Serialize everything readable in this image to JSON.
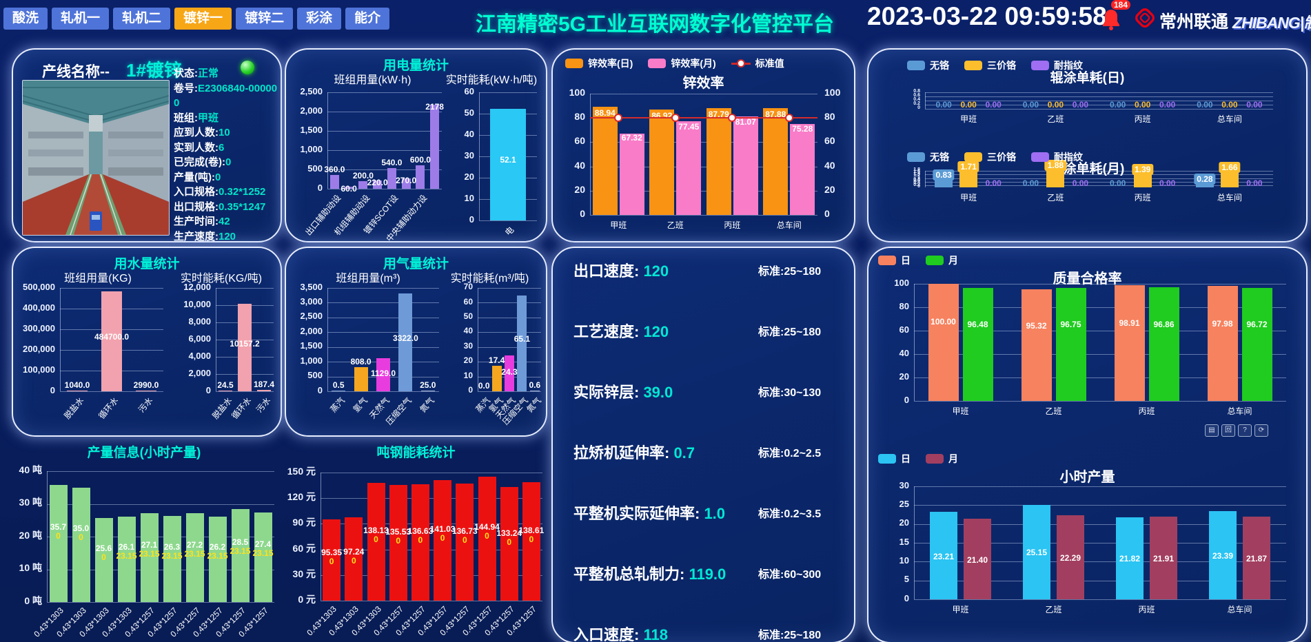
{
  "header": {
    "tabs": [
      {
        "label": "酸洗",
        "active": false
      },
      {
        "label": "轧机一",
        "active": false
      },
      {
        "label": "轧机二",
        "active": false
      },
      {
        "label": "镀锌一",
        "active": true
      },
      {
        "label": "镀锌二",
        "active": false
      },
      {
        "label": "彩涂",
        "active": false
      },
      {
        "label": "能介",
        "active": false
      }
    ],
    "title": "江南精密5G工业互联网数字化管控平台",
    "datetime": "2023-03-22 09:59:58",
    "alarm_count": "184",
    "carrier": "常州联通",
    "brand": "ZHIBANG|制邦"
  },
  "line_panel": {
    "title_prefix": "产线名称--",
    "line_name": "1#镀锌",
    "fields": [
      {
        "label": "状态:",
        "value": "正常"
      },
      {
        "label": "卷号:",
        "value": "E2306840-000000"
      },
      {
        "label": "班组:",
        "value": "甲班"
      },
      {
        "label": "应到人数:",
        "value": "10"
      },
      {
        "label": "实到人数:",
        "value": "6"
      },
      {
        "label": "已完成(卷):",
        "value": "0"
      },
      {
        "label": "产量(吨):",
        "value": "0"
      },
      {
        "label": "入口规格:",
        "value": "0.32*1252"
      },
      {
        "label": "出口规格:",
        "value": "0.35*1247"
      },
      {
        "label": "生产时间:",
        "value": "42"
      },
      {
        "label": "生产速度:",
        "value": "120"
      }
    ]
  },
  "panels": {
    "electric": "用电量统计",
    "water": "用水量统计",
    "gas": "用气量统计"
  },
  "params": {
    "rows": [
      {
        "label": "出口速度:",
        "value": "120",
        "std": "标准:25~180"
      },
      {
        "label": "工艺速度:",
        "value": "120",
        "std": "标准:25~180"
      },
      {
        "label": "实际锌层:",
        "value": "39.0",
        "std": "标准:30~130"
      },
      {
        "label": "拉矫机延伸率:",
        "value": "0.7",
        "std": "标准:0.2~2.5"
      },
      {
        "label": "平整机实际延伸率:",
        "value": "1.0",
        "std": "标准:0.2~3.5"
      },
      {
        "label": "平整机总轧制力:",
        "value": "119.0",
        "std": "标准:60~300"
      },
      {
        "label": "入口速度:",
        "value": "118",
        "std": "标准:25~180"
      }
    ]
  },
  "toolbox": {
    "icons": [
      "▤",
      "回",
      "?",
      "⟳"
    ]
  },
  "chart_data": {
    "elec_group": {
      "type": "bar",
      "title": "班组用量(kW·h)",
      "yticks": [
        "2,500",
        "2,000",
        "1,500",
        "1,000",
        "500",
        "0"
      ],
      "ymax": 2500,
      "categories": [
        "出口辅助动设",
        "",
        "机组辅助动设",
        "",
        "镀锌SCOT设",
        "",
        "中央辅助动力设",
        ""
      ],
      "values": [
        360,
        60,
        200,
        220,
        540,
        270,
        600,
        2178
      ],
      "labels": [
        "360.0",
        "60.0",
        "200.0",
        "220.0",
        "540.0",
        "270.0",
        "600.0",
        "2178"
      ],
      "color": "#9d7ce8"
    },
    "elec_single": {
      "type": "bar",
      "title": "实时能耗(kW·h/吨)",
      "yticks": [
        "60",
        "50",
        "40",
        "30",
        "20",
        "10",
        "0"
      ],
      "ymax": 60,
      "categories": [
        "电"
      ],
      "values": [
        52.1
      ],
      "labels": [
        "52.1"
      ],
      "color": "#2ac8f5"
    },
    "water_group": {
      "type": "bar",
      "title": "班组用量(KG)",
      "yticks": [
        "500,000",
        "400,000",
        "300,000",
        "200,000",
        "100,000",
        "0"
      ],
      "ymax": 500000,
      "categories": [
        "脱盐水",
        "循环水",
        "污水"
      ],
      "values": [
        1040,
        484700,
        2990
      ],
      "labels": [
        "1040.0",
        "484700.0",
        "2990.0"
      ],
      "color": "#f2a2ae"
    },
    "water_single": {
      "type": "bar",
      "title": "实时能耗(KG/吨)",
      "yticks": [
        "12,000",
        "10,000",
        "8,000",
        "6,000",
        "4,000",
        "2,000",
        "0"
      ],
      "ymax": 12000,
      "categories": [
        "脱盐水",
        "循环水",
        "污水"
      ],
      "values": [
        24.5,
        10157.2,
        187.4
      ],
      "labels": [
        "24.5",
        "10157.2",
        "187.4"
      ],
      "color": "#f2a2ae"
    },
    "gas_group": {
      "type": "bar",
      "title": "班组用量(m³)",
      "yticks": [
        "3,500",
        "3,000",
        "2,500",
        "2,000",
        "1,500",
        "1,000",
        "500",
        "0"
      ],
      "ymax": 3500,
      "categories": [
        "蒸汽",
        "氢气",
        "天然气",
        "压缩空气",
        "氮气"
      ],
      "values": [
        0.5,
        808,
        1129,
        3322,
        25
      ],
      "labels": [
        "0.5",
        "808.0",
        "1129.0",
        "3322.0",
        "25.0"
      ],
      "colors": [
        "#7d9fd3",
        "#f6a71f",
        "#e93cdf",
        "#6e9bd8",
        "#9fb3d8"
      ]
    },
    "gas_single": {
      "type": "bar",
      "title": "实时能耗(m³/吨)",
      "yticks": [
        "70",
        "60",
        "50",
        "40",
        "30",
        "20",
        "10",
        "0"
      ],
      "ymax": 70,
      "categories": [
        "蒸汽",
        "氢气",
        "天然气",
        "压缩空气",
        "氮气"
      ],
      "values": [
        0,
        17.4,
        24.3,
        65.1,
        0.6
      ],
      "labels": [
        "0.0",
        "17.4",
        "24.3",
        "65.1",
        "0.6"
      ],
      "colors": [
        "#7d9fd3",
        "#f6a71f",
        "#e93cdf",
        "#6e9bd8",
        "#9fb3d8"
      ]
    },
    "zinc_eff": {
      "type": "bar",
      "title": "锌效率",
      "legend": [
        {
          "label": "锌效率(日)",
          "color": "#f89313"
        },
        {
          "label": "锌效率(月)",
          "color": "#f97cc8"
        },
        {
          "label": "标准值",
          "color": "#cf2727",
          "type": "line"
        }
      ],
      "yticks": [
        "100",
        "80",
        "60",
        "40",
        "20",
        "0"
      ],
      "ymax": 100,
      "categories": [
        "甲班",
        "乙班",
        "丙班",
        "总车间"
      ],
      "series": [
        {
          "name": "锌效率(日)",
          "color": "#f89313",
          "values": [
            88.94,
            86.92,
            87.79,
            87.88
          ],
          "labels": [
            "88.94",
            "86.92",
            "87.79",
            "87.88"
          ]
        },
        {
          "name": "锌效率(月)",
          "color": "#f97cc8",
          "values": [
            67.32,
            77.45,
            81.07,
            75.28
          ],
          "labels": [
            "67.32",
            "77.45",
            "81.07",
            "75.28"
          ]
        }
      ],
      "standard": 80
    },
    "coat_day": {
      "type": "bar",
      "title": "辊涂单耗(日)",
      "legend": [
        {
          "label": "无铬",
          "color": "#5b9bd5"
        },
        {
          "label": "三价铬",
          "color": "#fcbe2d"
        },
        {
          "label": "耐指纹",
          "color": "#9f6ef2"
        }
      ],
      "yticks": [
        "0.8",
        "0.6",
        "0.4",
        "0.2",
        "0"
      ],
      "ymax": 0.9,
      "categories": [
        "甲班",
        "乙班",
        "丙班",
        "总车间"
      ],
      "series": [
        {
          "name": "无铬",
          "color": "#5b9bd5",
          "values": [
            0,
            0,
            0,
            0
          ],
          "labels": [
            "0.00",
            "0.00",
            "0.00",
            "0.00"
          ]
        },
        {
          "name": "三价铬",
          "color": "#fcbe2d",
          "values": [
            0,
            0,
            0,
            0
          ],
          "labels": [
            "0.00",
            "0.00",
            "0.00",
            "0.00"
          ]
        },
        {
          "name": "耐指纹",
          "color": "#9f6ef2",
          "values": [
            0,
            0,
            0,
            0
          ],
          "labels": [
            "0.00",
            "0.00",
            "0.00",
            "0.00"
          ]
        }
      ]
    },
    "coat_month": {
      "type": "bar",
      "title": "辊涂单耗(月)",
      "legend": [
        {
          "label": "无铬",
          "color": "#5b9bd5"
        },
        {
          "label": "三价铬",
          "color": "#fcbe2d"
        },
        {
          "label": "耐指纹",
          "color": "#9f6ef2"
        }
      ],
      "yticks": [
        "1.8",
        "1.6",
        "1.4",
        "1.2",
        "1",
        "0.8",
        "0.6",
        "0.4",
        "0.2",
        "0"
      ],
      "ymax": 1.9,
      "categories": [
        "甲班",
        "乙班",
        "丙班",
        "总车间"
      ],
      "series": [
        {
          "name": "无铬",
          "color": "#5b9bd5",
          "values": [
            0.83,
            0,
            0,
            0.28
          ],
          "labels": [
            "0.83",
            "0.00",
            "0.00",
            "0.28"
          ]
        },
        {
          "name": "三价铬",
          "color": "#fcbe2d",
          "values": [
            1.71,
            1.88,
            1.39,
            1.66
          ],
          "labels": [
            "1.71",
            "1.88",
            "1.39",
            "1.66"
          ]
        },
        {
          "name": "耐指纹",
          "color": "#9f6ef2",
          "values": [
            0,
            0,
            0,
            0
          ],
          "labels": [
            "0.00",
            "0.00",
            "0.00",
            "0.00"
          ]
        }
      ]
    },
    "quality": {
      "type": "bar",
      "title": "质量合格率",
      "legend": [
        {
          "label": "日",
          "color": "#f7825f"
        },
        {
          "label": "月",
          "color": "#1fcc1f"
        }
      ],
      "yticks": [
        "100",
        "80",
        "60",
        "40",
        "20",
        "0"
      ],
      "ymax": 100,
      "categories": [
        "甲班",
        "乙班",
        "丙班",
        "总车间"
      ],
      "series": [
        {
          "name": "日",
          "color": "#f7825f",
          "values": [
            100,
            95.32,
            98.91,
            97.98
          ],
          "labels": [
            "100.00",
            "95.32",
            "98.91",
            "97.98"
          ]
        },
        {
          "name": "月",
          "color": "#1fcc1f",
          "values": [
            96.48,
            96.75,
            96.86,
            96.72
          ],
          "labels": [
            "96.48",
            "96.75",
            "96.86",
            "96.72"
          ]
        }
      ]
    },
    "hourly": {
      "type": "bar",
      "title": "小时产量",
      "legend": [
        {
          "label": "日",
          "color": "#2bc4f3"
        },
        {
          "label": "月",
          "color": "#a23f60"
        }
      ],
      "yticks": [
        "30",
        "25",
        "20",
        "15",
        "10",
        "5",
        "0"
      ],
      "ymax": 30,
      "categories": [
        "甲班",
        "乙班",
        "丙班",
        "总车间"
      ],
      "series": [
        {
          "name": "日",
          "color": "#2bc4f3",
          "values": [
            23.21,
            25.15,
            21.82,
            23.39
          ],
          "labels": [
            "23.21",
            "25.15",
            "21.82",
            "23.39"
          ]
        },
        {
          "name": "月",
          "color": "#a23f60",
          "values": [
            21.4,
            22.29,
            21.91,
            21.87
          ],
          "labels": [
            "21.40",
            "22.29",
            "21.91",
            "21.87"
          ]
        }
      ]
    },
    "prod_hour": {
      "type": "bar",
      "title": "产量信息(小时产量)",
      "yticks": [
        "40 吨",
        "30 吨",
        "20 吨",
        "10 吨",
        "0 吨"
      ],
      "ymax": 40,
      "categories": [
        "0.43*1303",
        "0.43*1303",
        "0.43*1303",
        "0.43*1303",
        "0.43*1257",
        "0.43*1257",
        "0.43*1257",
        "0.43*1257",
        "0.43*1257",
        "0.43*1257"
      ],
      "values": [
        35.7,
        35.0,
        25.6,
        26.1,
        27.1,
        26.3,
        27.2,
        26.2,
        28.5,
        27.4
      ],
      "labels": [
        "35.7",
        "35.0",
        "25.6",
        "26.1",
        "27.1",
        "26.3",
        "27.2",
        "26.2",
        "28.5",
        "27.4"
      ],
      "subs": [
        "0",
        "0",
        "0",
        "23.15",
        "23.15",
        "23.15",
        "23.15",
        "23.15",
        "23.15",
        "23.15"
      ],
      "color": "#8ed88e"
    },
    "energy_ton": {
      "type": "bar",
      "title": "吨钢能耗统计",
      "yticks": [
        "150 元",
        "120 元",
        "90 元",
        "60 元",
        "30 元",
        "0 元"
      ],
      "ymax": 150,
      "categories": [
        "0.43*1303",
        "0.43*1303",
        "0.43*1303",
        "0.43*1257",
        "0.43*1257",
        "0.43*1257",
        "0.43*1257",
        "0.43*1257",
        "0.43*1257",
        "0.43*1257"
      ],
      "values": [
        95.35,
        97.24,
        138.13,
        135.53,
        136.63,
        141.03,
        136.73,
        144.94,
        133.24,
        138.61
      ],
      "labels": [
        "95.35",
        "97.24",
        "138.13",
        "135.53",
        "136.63",
        "141.03",
        "136.73",
        "144.94",
        "133.24",
        "138.61"
      ],
      "subs": [
        "0",
        "0",
        "0",
        "0",
        "0",
        "0",
        "0",
        "0",
        "0",
        "0"
      ],
      "color": "#ec1111"
    }
  }
}
